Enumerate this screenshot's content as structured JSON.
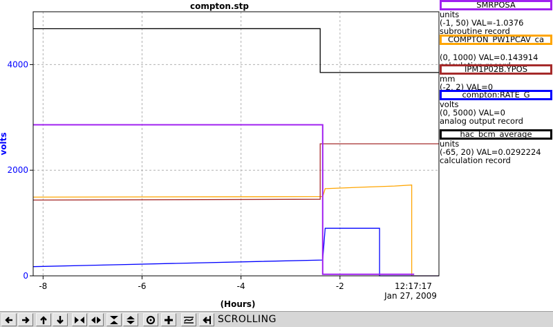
{
  "plot": {
    "title": "compton.stp",
    "y_axis_label": "volts",
    "y_ticks": [
      {
        "value": 0,
        "label": "0"
      },
      {
        "value": 2000,
        "label": "2000"
      },
      {
        "value": 4000,
        "label": "4000"
      }
    ],
    "x_axis_label": "(Hours)",
    "x_ticks": [
      {
        "value": -8,
        "label": "-8"
      },
      {
        "value": -6,
        "label": "-6"
      },
      {
        "value": -4,
        "label": "-4"
      },
      {
        "value": -2,
        "label": "-2"
      }
    ],
    "end_time": "12:17:17",
    "end_date": "Jan 27, 2009",
    "grid": true
  },
  "chart_data": {
    "type": "line",
    "x_label": "(Hours)",
    "y_label": "volts",
    "xlim": [
      -8.2,
      0
    ],
    "ylim": [
      0,
      5000
    ],
    "series": [
      {
        "name": "SMRPOSA",
        "color": "#a020f0",
        "x": [
          -8.2,
          -2.35,
          -2.35,
          -0.5
        ],
        "values": [
          2860,
          2860,
          30,
          30
        ]
      },
      {
        "name": "COMPTON_PW1PCAV_ca",
        "color": "#ffa500",
        "x": [
          -8.2,
          -2.35,
          -2.3,
          -1.5,
          -0.9,
          -0.55,
          -0.55,
          0
        ],
        "values": [
          1500,
          1500,
          1650,
          1680,
          1700,
          1720,
          0,
          0
        ]
      },
      {
        "name": "IPM1P02B.YPOS",
        "color": "#a52a2a",
        "x": [
          -8.2,
          -2.4,
          -2.4,
          0
        ],
        "values": [
          1450,
          1450,
          2500,
          2500
        ]
      },
      {
        "name": "compton:RATE_G",
        "color": "#0000ff",
        "x": [
          -8.2,
          -2.35,
          -2.3,
          -1.2,
          -1.2,
          0
        ],
        "values": [
          300,
          300,
          900,
          900,
          0,
          0
        ]
      },
      {
        "name": "hac_bcm_average",
        "color": "#000000",
        "x": [
          -8.2,
          -2.4,
          -2.4,
          0
        ],
        "values": [
          4680,
          4680,
          3850,
          3850
        ]
      }
    ]
  },
  "legend": [
    {
      "name": "SMRPOSA",
      "color": "#a020f0",
      "units": "units",
      "range_val": "(-1, 50) VAL=-1.0376",
      "record": "subroutine record"
    },
    {
      "name": "COMPTON_PW1PCAV_ca",
      "color": "#ffa500",
      "units": "",
      "range_val": "(0, 1000) VAL=0.143914",
      "record": "calculation record"
    },
    {
      "name": "IPM1P02B.YPOS",
      "color": "#a52a2a",
      "units": "mm",
      "range_val": "(-2, 2) VAL=0",
      "record": ""
    },
    {
      "name": "compton:RATE_G",
      "color": "#0000ff",
      "units": "volts",
      "range_val": "(0, 5000) VAL=0",
      "record": "analog output record"
    },
    {
      "name": "hac_bcm_average",
      "color": "#000000",
      "units": "units",
      "range_val": "(-65, 20) VAL=0.0292224",
      "record": "calculation record"
    }
  ],
  "toolbar": {
    "buttons": [
      {
        "icon": "arrow-left-icon"
      },
      {
        "icon": "arrow-right-icon"
      },
      {
        "icon": "arrow-up-icon"
      },
      {
        "icon": "arrow-down-icon"
      },
      {
        "icon": "expand-horizontal-icon"
      },
      {
        "icon": "compress-horizontal-icon"
      },
      {
        "icon": "expand-vertical-icon"
      },
      {
        "icon": "compress-vertical-icon"
      },
      {
        "icon": "zoom-circle-icon"
      },
      {
        "icon": "plus-icon"
      },
      {
        "icon": "autoscale-icon"
      },
      {
        "icon": "scroll-end-icon"
      }
    ],
    "status": "SCROLLING"
  }
}
